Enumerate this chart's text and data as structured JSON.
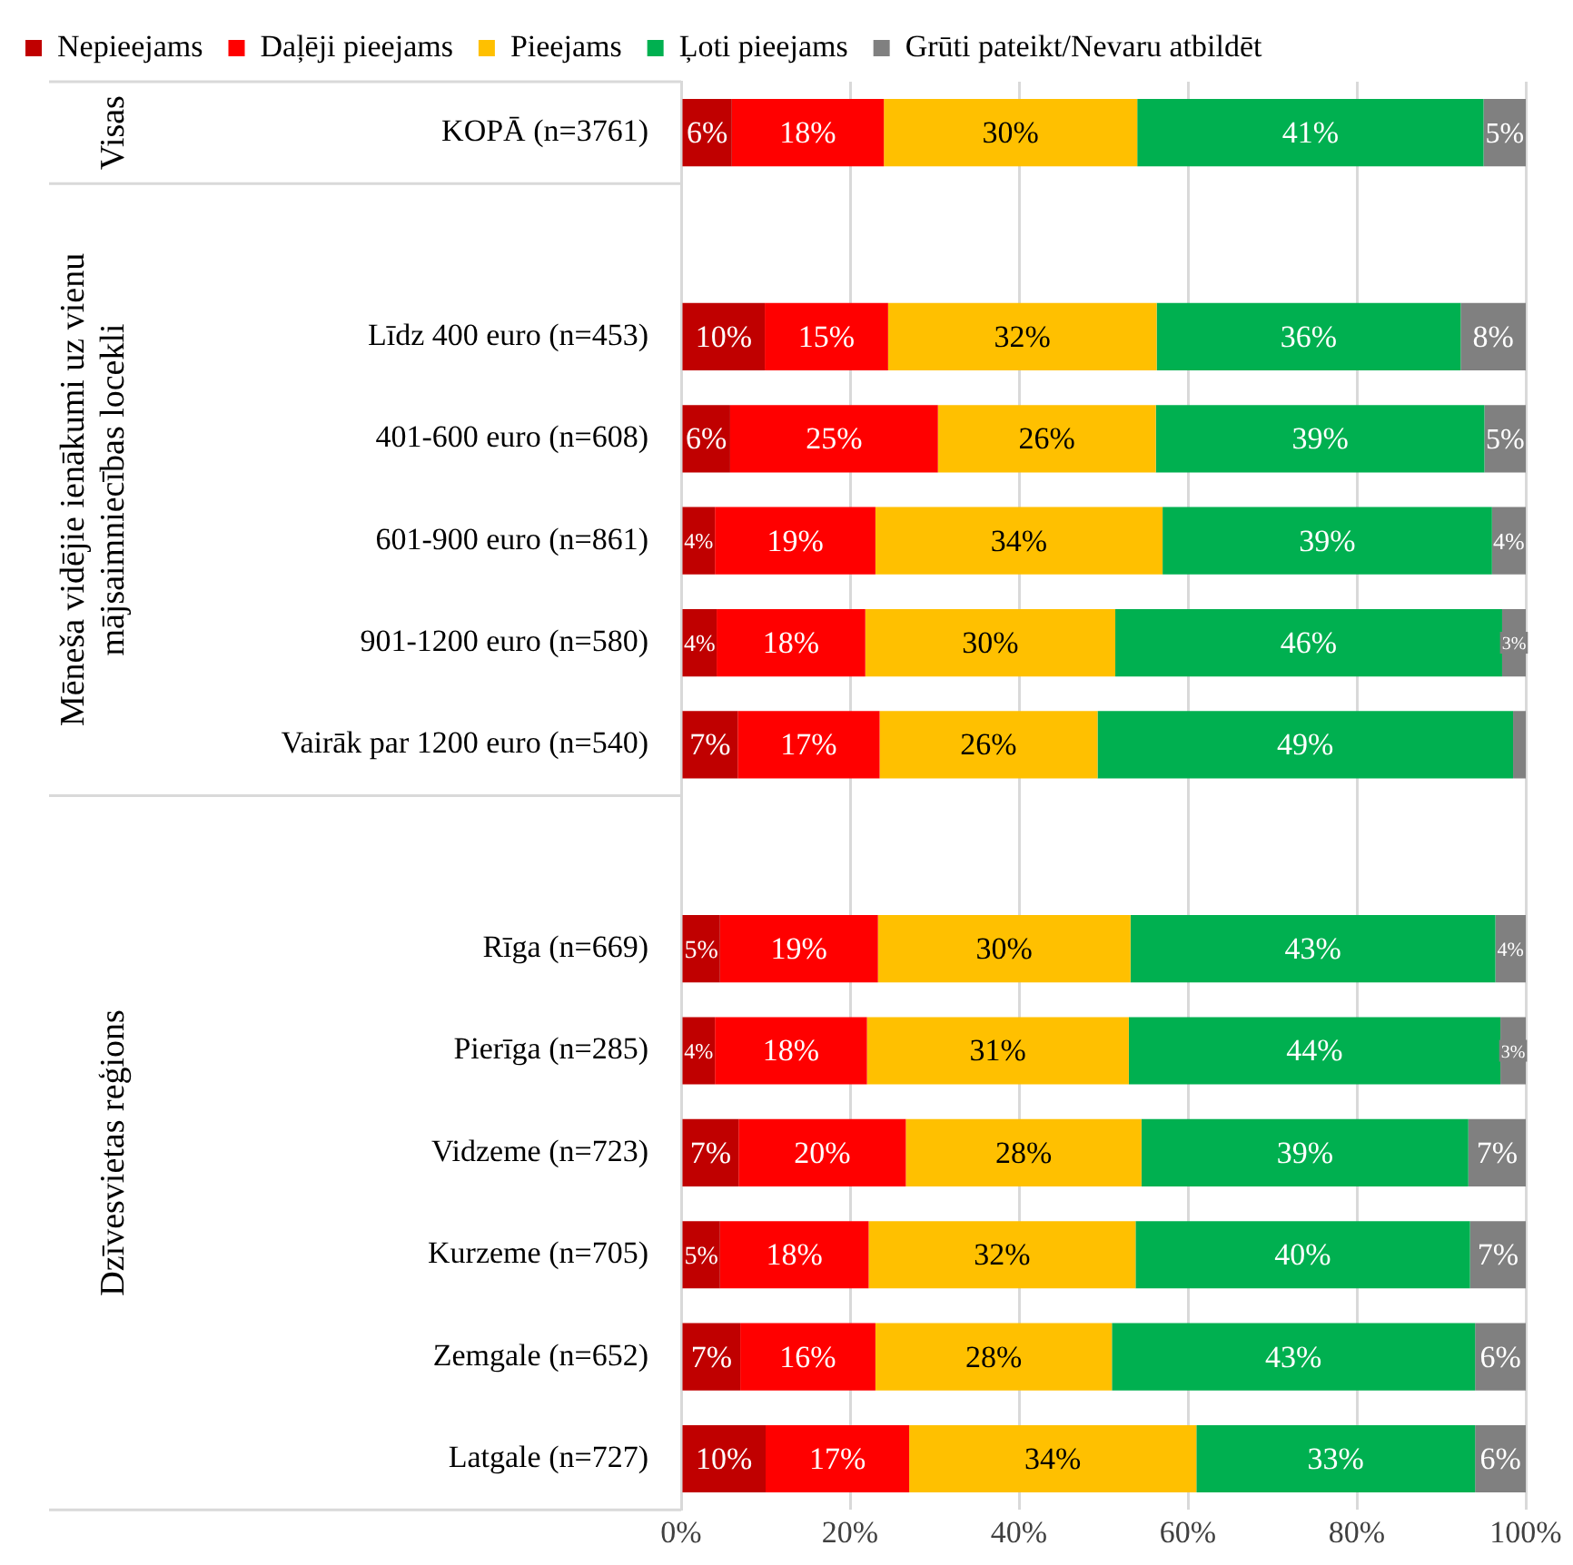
{
  "chart_data": {
    "type": "bar",
    "orientation": "horizontal",
    "stacked": true,
    "categories": [
      "KOPĀ (n=3761)",
      null,
      "Līdz 400 euro (n=453)",
      "401-600 euro (n=608)",
      "601-900 euro (n=861)",
      "901-1200 euro (n=580)",
      "Vairāk par 1200 euro (n=540)",
      null,
      "Rīga (n=669)",
      "Pierīga (n=285)",
      "Vidzeme (n=723)",
      "Kurzeme (n=705)",
      "Zemgale (n=652)",
      "Latgale (n=727)"
    ],
    "series": [
      {
        "name": "Nepieejams",
        "color": "#c00000",
        "values": [
          6,
          null,
          9.9,
          5.8,
          4,
          4.2,
          6.7,
          null,
          4.6,
          4,
          6.8,
          4.6,
          7,
          10
        ],
        "value_labels": [
          "6%",
          null,
          "10%",
          "6%",
          "4%",
          "4%",
          "7%",
          null,
          "5%",
          "4%",
          "7%",
          "5%",
          "7%",
          "10%"
        ]
      },
      {
        "name": "Daļēji pieejams",
        "color": "#ff0000",
        "values": [
          18,
          null,
          14.6,
          24.6,
          19,
          17.6,
          16.8,
          null,
          18.7,
          18,
          19.8,
          17.6,
          16,
          17
        ],
        "value_labels": [
          "18%",
          null,
          "15%",
          "25%",
          "19%",
          "18%",
          "17%",
          null,
          "19%",
          "18%",
          "20%",
          "18%",
          "16%",
          "17%"
        ]
      },
      {
        "name": "Pieejams",
        "color": "#ffc000",
        "values": [
          30,
          null,
          31.8,
          25.8,
          34,
          29.6,
          25.8,
          null,
          29.9,
          31,
          27.9,
          31.6,
          28,
          34
        ],
        "value_labels": [
          "30%",
          null,
          "32%",
          "26%",
          "34%",
          "30%",
          "26%",
          null,
          "30%",
          "31%",
          "28%",
          "32%",
          "28%",
          "34%"
        ]
      },
      {
        "name": "Ļoti pieejams",
        "color": "#00b050",
        "values": [
          41,
          null,
          36.0,
          38.9,
          39,
          45.8,
          49.2,
          null,
          43.2,
          44,
          38.7,
          39.6,
          43,
          33
        ],
        "value_labels": [
          "41%",
          null,
          "36%",
          "39%",
          "39%",
          "46%",
          "49%",
          null,
          "43%",
          "44%",
          "39%",
          "40%",
          "43%",
          "33%"
        ]
      },
      {
        "name": "Grūti pateikt/Nevaru atbildēt",
        "color": "#808080",
        "values": [
          5,
          null,
          7.7,
          4.9,
          4,
          2.8,
          1.5,
          null,
          3.6,
          3,
          6.8,
          6.6,
          6,
          6
        ],
        "value_labels": [
          "5%",
          null,
          "8%",
          "5%",
          "4%",
          "3%",
          null,
          null,
          "4%",
          "3%",
          "7%",
          "7%",
          "6%",
          "6%"
        ]
      }
    ],
    "xlim": [
      0,
      100
    ],
    "xticks": [
      {
        "value": 0,
        "label": "0%"
      },
      {
        "value": 20,
        "label": "20%"
      },
      {
        "value": 40,
        "label": "40%"
      },
      {
        "value": 60,
        "label": "60%"
      },
      {
        "value": 80,
        "label": "80%"
      },
      {
        "value": 100,
        "label": "100%"
      }
    ],
    "grid": "x",
    "legend": "top",
    "annotations": [
      "Visas",
      "Mēneša vidējie ienākumi uz vienu mājsaimniecības locekli",
      "Dzīvesvietas reģions"
    ]
  }
}
